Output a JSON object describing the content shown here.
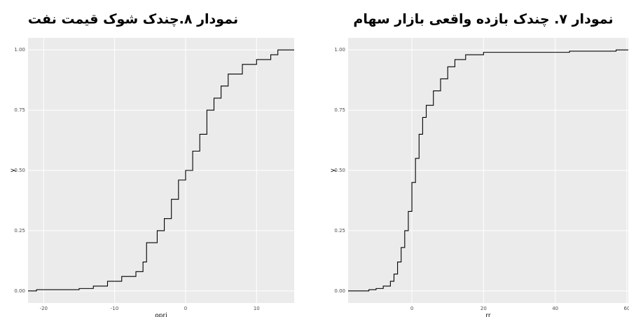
{
  "chart_data": [
    {
      "type": "step",
      "title": "نمودار ۸.چندک شوک قیمت نفت",
      "x_label": "opri",
      "y_label": "y",
      "x": [
        -22.2,
        -21,
        -15,
        -13,
        -11,
        -9,
        -7,
        -6,
        -5.5,
        -4,
        -3,
        -2,
        -1,
        0,
        1,
        2,
        3,
        4,
        5,
        6,
        8,
        10,
        12,
        13,
        15.3
      ],
      "values": [
        0,
        0.005,
        0.01,
        0.02,
        0.04,
        0.06,
        0.08,
        0.12,
        0.2,
        0.25,
        0.3,
        0.38,
        0.46,
        0.5,
        0.58,
        0.65,
        0.75,
        0.8,
        0.85,
        0.9,
        0.94,
        0.96,
        0.98,
        1.0,
        1.0
      ],
      "color": "#000000",
      "xlim": [
        -22.2,
        15.3
      ],
      "ylim": [
        -0.05,
        1.05
      ],
      "xticks": [
        -20,
        -10,
        0,
        10
      ],
      "yticks": [
        {
          "value": 0,
          "label": "0.00"
        },
        {
          "value": 0.25,
          "label": "0.25"
        },
        {
          "value": 0.5,
          "label": "0.50"
        },
        {
          "value": 0.75,
          "label": "0.75"
        },
        {
          "value": 1,
          "label": "1.00"
        }
      ],
      "grid": true
    },
    {
      "type": "step",
      "title": "نمودار ۷. چندک بازده واقعی بازار سهام",
      "x_label": "rr",
      "y_label": "y",
      "x": [
        -17.8,
        -12,
        -10,
        -8,
        -6,
        -5,
        -4,
        -3,
        -2,
        -1,
        0,
        1,
        2,
        3,
        4,
        6,
        8,
        10,
        12,
        15,
        20,
        42,
        44,
        57,
        60.4
      ],
      "values": [
        0,
        0.005,
        0.01,
        0.02,
        0.04,
        0.07,
        0.12,
        0.18,
        0.25,
        0.33,
        0.45,
        0.55,
        0.65,
        0.72,
        0.77,
        0.83,
        0.88,
        0.93,
        0.96,
        0.98,
        0.99,
        0.99,
        0.995,
        1.0,
        1.0
      ],
      "color": "#000000",
      "xlim": [
        -17.8,
        60.4
      ],
      "ylim": [
        -0.05,
        1.05
      ],
      "xticks": [
        0,
        20,
        40,
        60
      ],
      "yticks": [
        {
          "value": 0,
          "label": "0.00"
        },
        {
          "value": 0.25,
          "label": "0.25"
        },
        {
          "value": 0.5,
          "label": "0.50"
        },
        {
          "value": 0.75,
          "label": "0.75"
        },
        {
          "value": 1,
          "label": "1.00"
        }
      ],
      "grid": true
    }
  ]
}
